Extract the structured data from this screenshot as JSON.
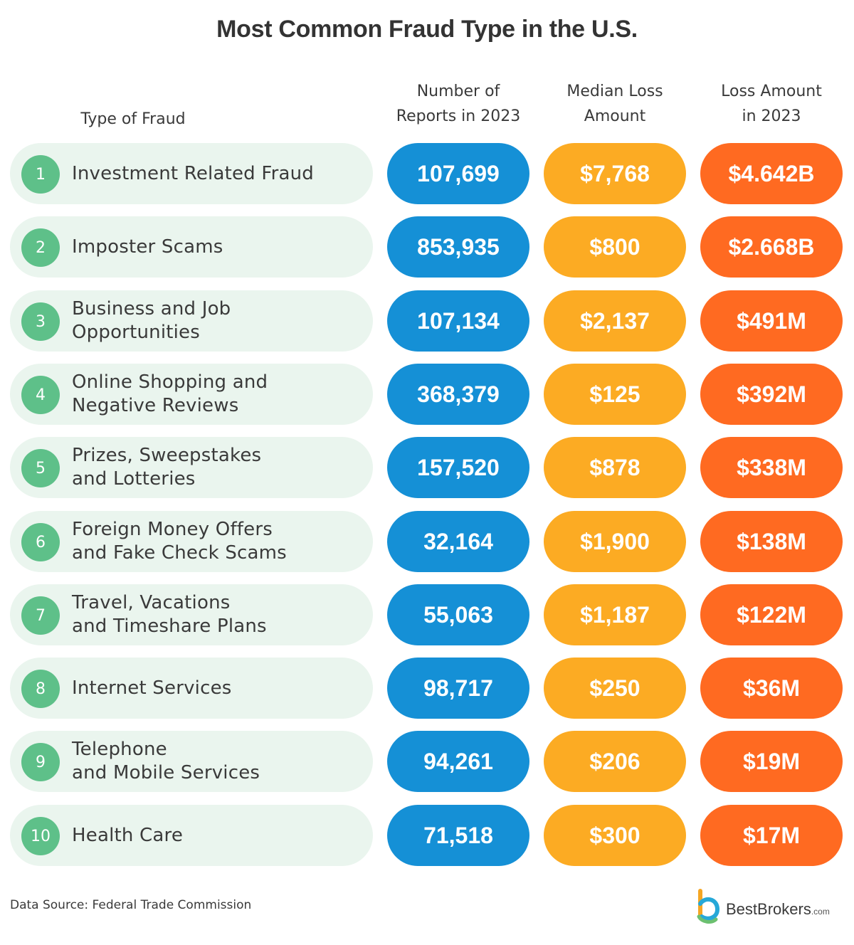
{
  "title": "Most Common Fraud Type in the U.S.",
  "headers": {
    "type": "Type of Fraud",
    "reports": "Number of\nReports in 2023",
    "median": "Median Loss\nAmount",
    "loss": "Loss Amount\nin 2023"
  },
  "colors": {
    "reports": "#1590d6",
    "median": "#fcab23",
    "loss": "#ff6a21",
    "circle": "#5ec089",
    "rowbg": "#eaf5ee"
  },
  "chart_data": {
    "type": "table",
    "title": "Most Common Fraud Type in the U.S.",
    "columns": [
      "Type of Fraud",
      "Number of Reports in 2023",
      "Median Loss Amount",
      "Loss Amount in 2023"
    ],
    "rows": [
      {
        "rank": "1",
        "type": "Investment Related Fraud",
        "reports": "107,699",
        "median": "$7,768",
        "loss": "$4.642B"
      },
      {
        "rank": "2",
        "type": "Imposter Scams",
        "reports": "853,935",
        "median": "$800",
        "loss": "$2.668B"
      },
      {
        "rank": "3",
        "type": "Business and Job\nOpportunities",
        "reports": "107,134",
        "median": "$2,137",
        "loss": "$491M"
      },
      {
        "rank": "4",
        "type": "Online Shopping and\nNegative Reviews",
        "reports": "368,379",
        "median": "$125",
        "loss": "$392M"
      },
      {
        "rank": "5",
        "type": "Prizes, Sweepstakes\nand Lotteries",
        "reports": "157,520",
        "median": "$878",
        "loss": "$338M"
      },
      {
        "rank": "6",
        "type": "Foreign Money Offers\nand Fake Check Scams",
        "reports": "32,164",
        "median": "$1,900",
        "loss": "$138M"
      },
      {
        "rank": "7",
        "type": "Travel, Vacations\nand Timeshare Plans",
        "reports": "55,063",
        "median": "$1,187",
        "loss": "$122M"
      },
      {
        "rank": "8",
        "type": "Internet Services",
        "reports": "98,717",
        "median": "$250",
        "loss": "$36M"
      },
      {
        "rank": "9",
        "type": "Telephone\nand Mobile Services",
        "reports": "94,261",
        "median": "$206",
        "loss": "$19M"
      },
      {
        "rank": "10",
        "type": "Health Care",
        "reports": "71,518",
        "median": "$300",
        "loss": "$17M"
      }
    ]
  },
  "footer": {
    "source": "Data Source: Federal Trade Commission",
    "brand": "BestBrokers",
    "brand_suffix": ".com"
  }
}
